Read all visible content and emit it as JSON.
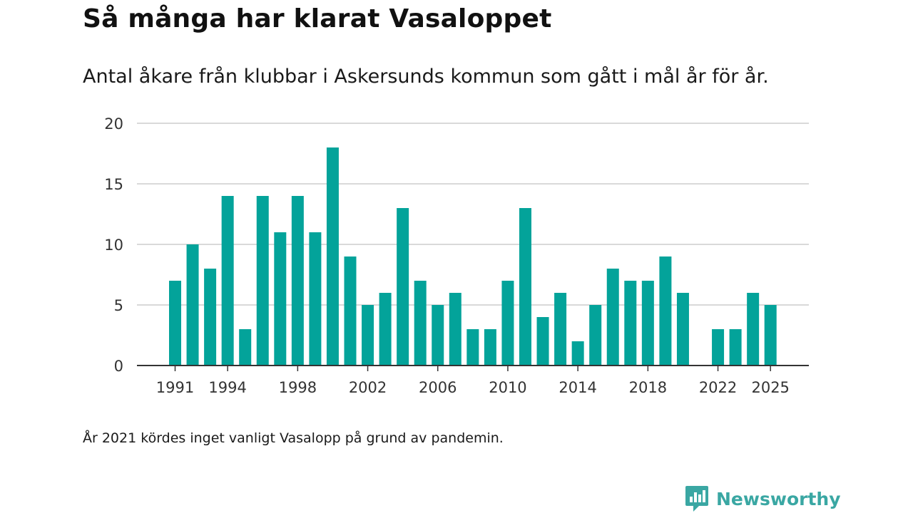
{
  "title": "Så många har klarat Vasaloppet",
  "subtitle": "Antal åkare från klubbar i Askersunds kommun som gått i mål år för år.",
  "note": "År 2021 kördes inget vanligt Vasalopp på grund av pandemin.",
  "brand": {
    "name": "Newsworthy",
    "color": "#3aa7a3",
    "icon": "newsworthy-logo-icon"
  },
  "colors": {
    "bar": "#03a39a",
    "grid": "#d9d9d9",
    "axis": "#333333"
  },
  "chart_data": {
    "type": "bar",
    "title": "Så många har klarat Vasaloppet",
    "xlabel": "",
    "ylabel": "",
    "ylim": [
      0,
      20
    ],
    "yticks": [
      0,
      5,
      10,
      15,
      20
    ],
    "xticks": [
      1991,
      1994,
      1998,
      2002,
      2006,
      2010,
      2014,
      2018,
      2022,
      2025
    ],
    "grid": true,
    "categories": [
      1991,
      1992,
      1993,
      1994,
      1995,
      1996,
      1997,
      1998,
      1999,
      2000,
      2001,
      2002,
      2003,
      2004,
      2005,
      2006,
      2007,
      2008,
      2009,
      2010,
      2011,
      2012,
      2013,
      2014,
      2015,
      2016,
      2017,
      2018,
      2019,
      2020,
      2021,
      2022,
      2023,
      2024,
      2025
    ],
    "values": [
      7,
      10,
      8,
      14,
      3,
      14,
      11,
      14,
      11,
      18,
      9,
      5,
      6,
      13,
      7,
      5,
      6,
      3,
      3,
      7,
      13,
      4,
      6,
      2,
      5,
      8,
      7,
      7,
      9,
      6,
      null,
      3,
      3,
      6,
      5
    ]
  }
}
